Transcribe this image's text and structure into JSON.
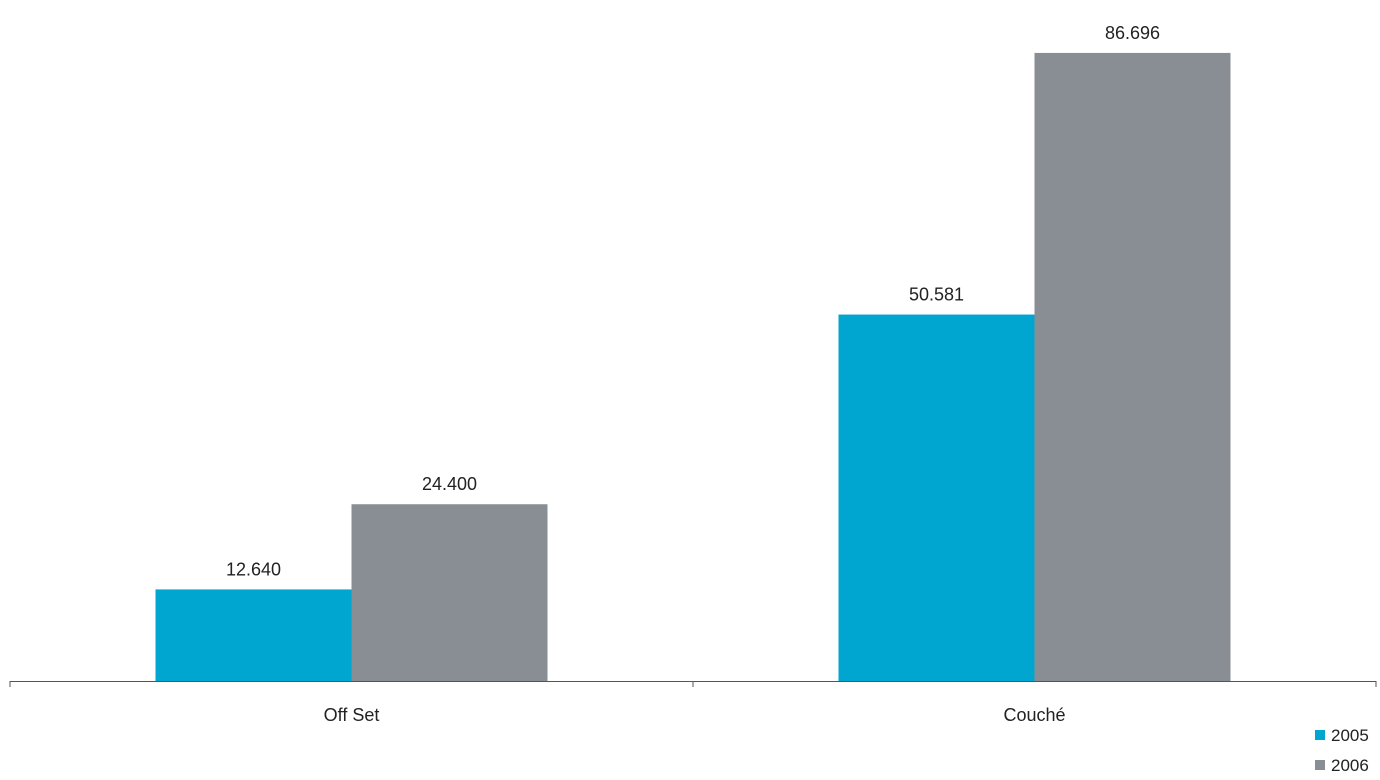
{
  "chart_data": {
    "type": "bar",
    "categories": [
      "Off Set",
      "Couché"
    ],
    "series": [
      {
        "name": "2005",
        "values": [
          12640,
          50581
        ],
        "value_labels": [
          "12.640",
          "50.581"
        ],
        "color": "#00A6CF"
      },
      {
        "name": "2006",
        "values": [
          24400,
          86696
        ],
        "value_labels": [
          "24.400",
          "86.696"
        ],
        "color": "#898E94"
      }
    ],
    "title": "",
    "xlabel": "",
    "ylabel": "",
    "ylim": [
      0,
      94000
    ],
    "grid": false,
    "legend_position": "bottom-right",
    "axis_color": "#555555"
  }
}
